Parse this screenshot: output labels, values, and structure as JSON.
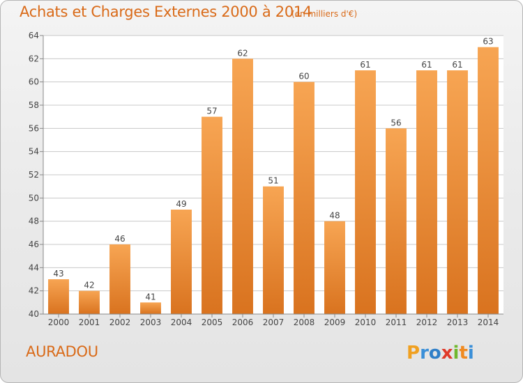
{
  "chart_title": "Achats et Charges Externes 2000 à 2014",
  "chart_subtitle": "(en milliers d'€)",
  "commune": "AURADOU",
  "logo_text": "Proxiti",
  "colors": {
    "bar_top": "#f7a553",
    "bar_bottom": "#d9731f",
    "title": "#d96a18",
    "grid": "#c8c8c8",
    "axis": "#888888",
    "logo_p": "#f0a020",
    "logo_r": "#3a8fd8",
    "logo_o": "#2f7fc8",
    "logo_x": "#e03a2a",
    "logo_i1": "#70b82e",
    "logo_t": "#f08a20",
    "logo_i2": "#3a8fd8"
  },
  "chart_data": {
    "type": "bar",
    "title": "Achats et Charges Externes 2000 à 2014",
    "subtitle": "(en milliers d'€)",
    "xlabel": "",
    "ylabel": "",
    "categories": [
      "2000",
      "2001",
      "2002",
      "2003",
      "2004",
      "2005",
      "2006",
      "2007",
      "2008",
      "2009",
      "2010",
      "2011",
      "2012",
      "2013",
      "2014"
    ],
    "values": [
      43,
      42,
      46,
      41,
      49,
      57,
      62,
      51,
      60,
      48,
      61,
      56,
      61,
      61,
      63
    ],
    "ylim": [
      40,
      64
    ],
    "yticks": [
      40,
      42,
      44,
      46,
      48,
      50,
      52,
      54,
      56,
      58,
      60,
      62,
      64
    ],
    "grid": true,
    "legend": "none"
  }
}
